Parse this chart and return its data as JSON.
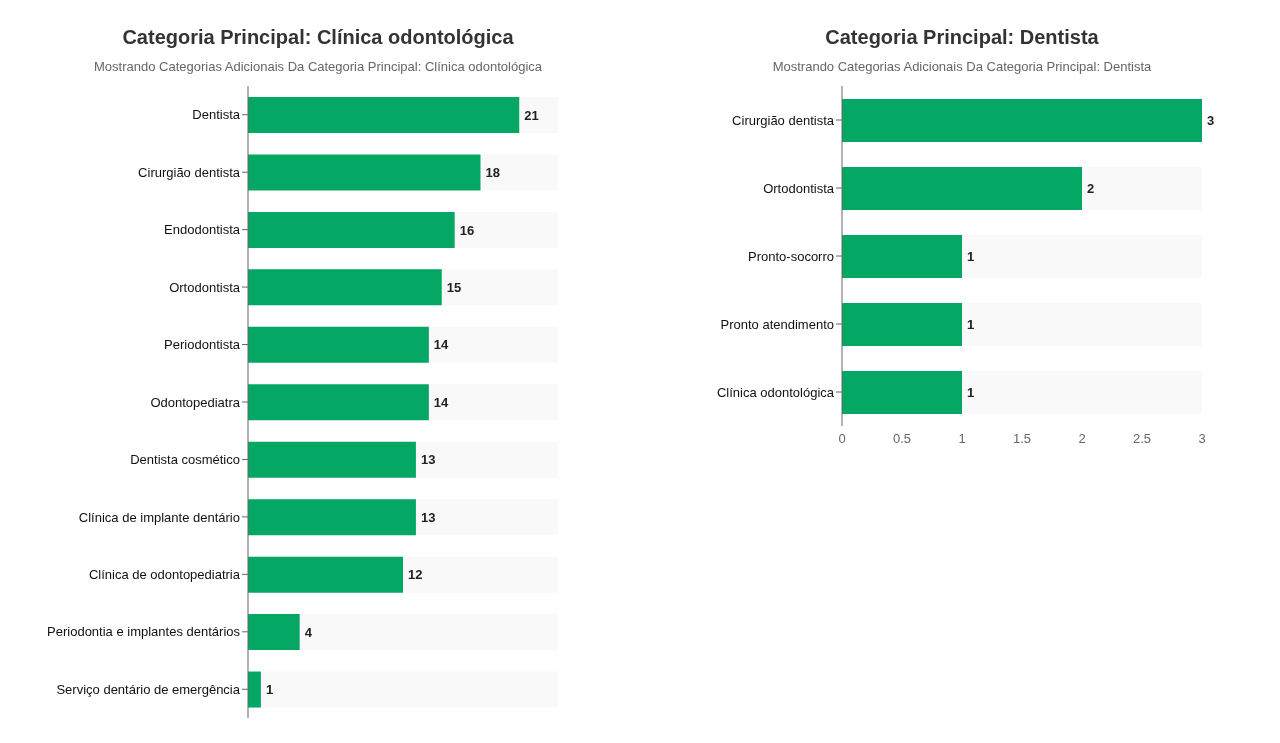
{
  "chart_data": [
    {
      "type": "bar",
      "orientation": "horizontal",
      "title": "Categoria Principal: Clínica odontológica",
      "subtitle": "Mostrando Categorias Adicionais Da Categoria Principal: Clínica odontológica",
      "categories": [
        "Dentista",
        "Cirurgião dentista",
        "Endodontista",
        "Ortodontista",
        "Periodontista",
        "Odontopediatra",
        "Dentista cosmético",
        "Clínica de implante dentário",
        "Clínica de odontopediatria",
        "Periodontia e implantes dentários",
        "Serviço dentário de emergência"
      ],
      "values": [
        21,
        18,
        16,
        15,
        14,
        14,
        13,
        13,
        12,
        4,
        1
      ],
      "color": "#04a864",
      "data_labels": true,
      "tick_labels": "y",
      "grid": false,
      "legend": false
    },
    {
      "type": "bar",
      "orientation": "horizontal",
      "title": "Categoria Principal: Dentista",
      "subtitle": "Mostrando Categorias Adicionais Da Categoria Principal: Dentista",
      "categories": [
        "Cirurgião dentista",
        "Ortodontista",
        "Pronto-socorro",
        "Pronto atendimento",
        "Clínica odontológica"
      ],
      "values": [
        3,
        2,
        1,
        1,
        1
      ],
      "color": "#04a864",
      "data_labels": true,
      "xlim": [
        0,
        3
      ],
      "xticks": [
        0,
        0.5,
        1,
        1.5,
        2,
        2.5,
        3
      ],
      "grid": false,
      "legend": false
    }
  ]
}
